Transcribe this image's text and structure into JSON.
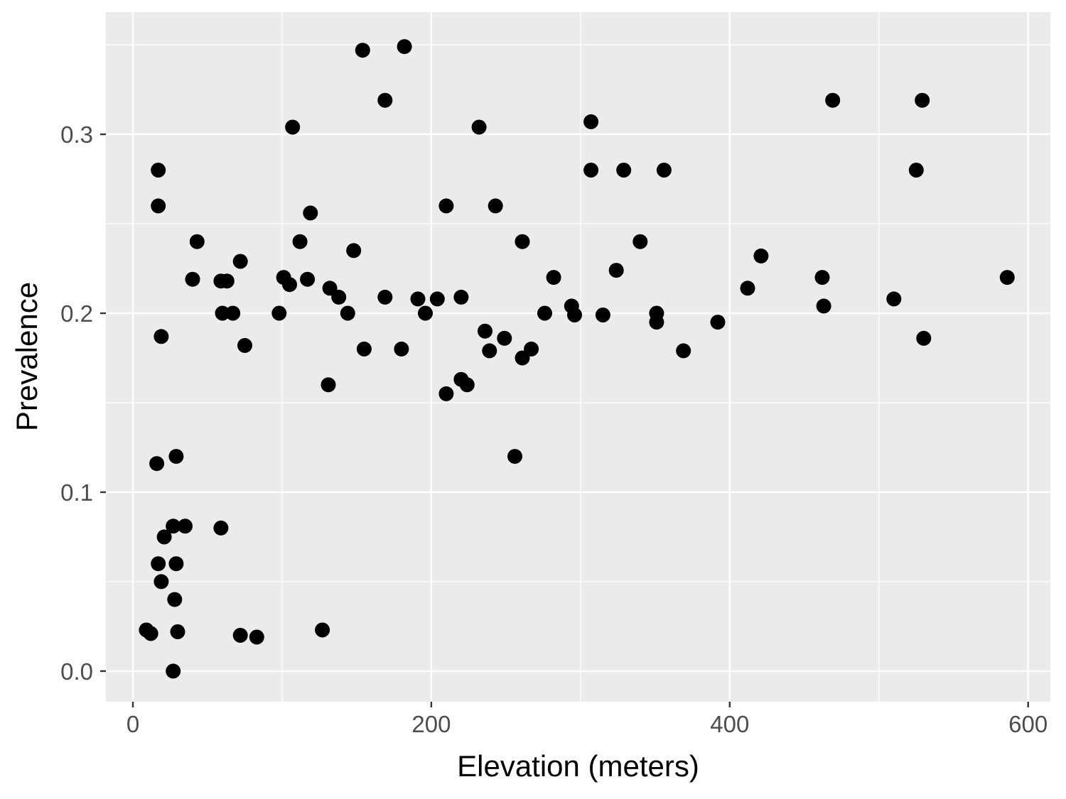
{
  "chart_data": {
    "type": "scatter",
    "title": "",
    "xlabel": "Elevation (meters)",
    "ylabel": "Prevalence",
    "xlim": [
      -18.1,
      614.9
    ],
    "ylim": [
      -0.0171,
      0.3683
    ],
    "x_major_ticks": [
      0,
      200,
      400,
      600
    ],
    "x_tick_labels": [
      "0",
      "200",
      "400",
      "600"
    ],
    "x_minor_ticks": [
      100,
      300,
      500
    ],
    "y_major_ticks": [
      0.0,
      0.1,
      0.2,
      0.3
    ],
    "y_tick_labels": [
      "0.0",
      "0.1",
      "0.2",
      "0.3"
    ],
    "y_minor_ticks": [
      0.05,
      0.15,
      0.25,
      0.35
    ],
    "grid": true,
    "legend": "none",
    "theme": {
      "panel_bg": "#EBEBEB",
      "grid_major_color": "#FFFFFF",
      "grid_minor_color": "#FFFFFF",
      "point_color": "#000000",
      "tick_label_color": "#4D4D4D",
      "tick_mark_color": "#333333",
      "axis_title_color": "#000000"
    },
    "points": [
      [
        154,
        0.347
      ],
      [
        182,
        0.349
      ],
      [
        169,
        0.319
      ],
      [
        107,
        0.304
      ],
      [
        17,
        0.28
      ],
      [
        17,
        0.26
      ],
      [
        119,
        0.256
      ],
      [
        232,
        0.304
      ],
      [
        307,
        0.307
      ],
      [
        307,
        0.28
      ],
      [
        329,
        0.28
      ],
      [
        356,
        0.28
      ],
      [
        210,
        0.26
      ],
      [
        243,
        0.26
      ],
      [
        469,
        0.319
      ],
      [
        529,
        0.319
      ],
      [
        525,
        0.28
      ],
      [
        43,
        0.24
      ],
      [
        112,
        0.24
      ],
      [
        148,
        0.235
      ],
      [
        72,
        0.229
      ],
      [
        40,
        0.219
      ],
      [
        59,
        0.218
      ],
      [
        63,
        0.218
      ],
      [
        101,
        0.22
      ],
      [
        105,
        0.216
      ],
      [
        117,
        0.219
      ],
      [
        132,
        0.214
      ],
      [
        138,
        0.209
      ],
      [
        169,
        0.209
      ],
      [
        191,
        0.208
      ],
      [
        60,
        0.2
      ],
      [
        67,
        0.2
      ],
      [
        98,
        0.2
      ],
      [
        144,
        0.2
      ],
      [
        19,
        0.187
      ],
      [
        75,
        0.182
      ],
      [
        155,
        0.18
      ],
      [
        180,
        0.18
      ],
      [
        131,
        0.16
      ],
      [
        16,
        0.116
      ],
      [
        29,
        0.12
      ],
      [
        261,
        0.24
      ],
      [
        340,
        0.24
      ],
      [
        324,
        0.224
      ],
      [
        282,
        0.22
      ],
      [
        204,
        0.208
      ],
      [
        220,
        0.209
      ],
      [
        294,
        0.204
      ],
      [
        296,
        0.199
      ],
      [
        276,
        0.2
      ],
      [
        315,
        0.199
      ],
      [
        196,
        0.2
      ],
      [
        351,
        0.2
      ],
      [
        351,
        0.195
      ],
      [
        392,
        0.195
      ],
      [
        236,
        0.19
      ],
      [
        249,
        0.186
      ],
      [
        239,
        0.179
      ],
      [
        267,
        0.18
      ],
      [
        261,
        0.175
      ],
      [
        369,
        0.179
      ],
      [
        220,
        0.163
      ],
      [
        224,
        0.16
      ],
      [
        210,
        0.155
      ],
      [
        256,
        0.12
      ],
      [
        421,
        0.232
      ],
      [
        412,
        0.214
      ],
      [
        462,
        0.22
      ],
      [
        463,
        0.204
      ],
      [
        510,
        0.208
      ],
      [
        586,
        0.22
      ],
      [
        530,
        0.186
      ],
      [
        27,
        0.081
      ],
      [
        35,
        0.081
      ],
      [
        21,
        0.075
      ],
      [
        59,
        0.08
      ],
      [
        17,
        0.06
      ],
      [
        29,
        0.06
      ],
      [
        19,
        0.05
      ],
      [
        28,
        0.04
      ],
      [
        9,
        0.023
      ],
      [
        12,
        0.021
      ],
      [
        30,
        0.022
      ],
      [
        72,
        0.02
      ],
      [
        83,
        0.019
      ],
      [
        127,
        0.023
      ],
      [
        27,
        0.0
      ]
    ]
  }
}
